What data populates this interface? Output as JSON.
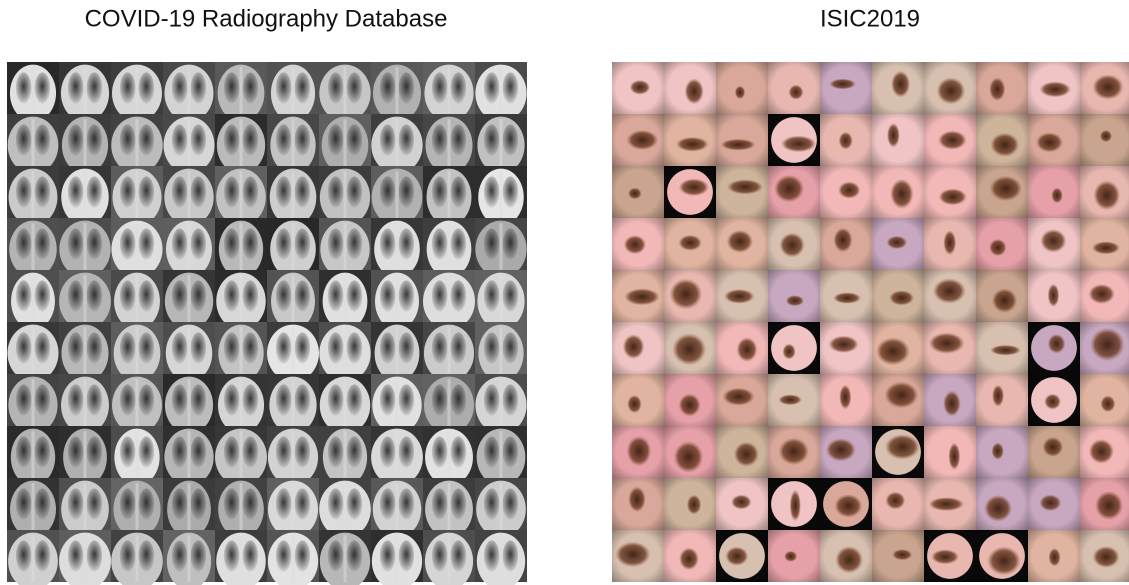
{
  "panels": [
    {
      "title": "COVID-19 Radiography Database"
    },
    {
      "title": "ISIC2019"
    }
  ]
}
